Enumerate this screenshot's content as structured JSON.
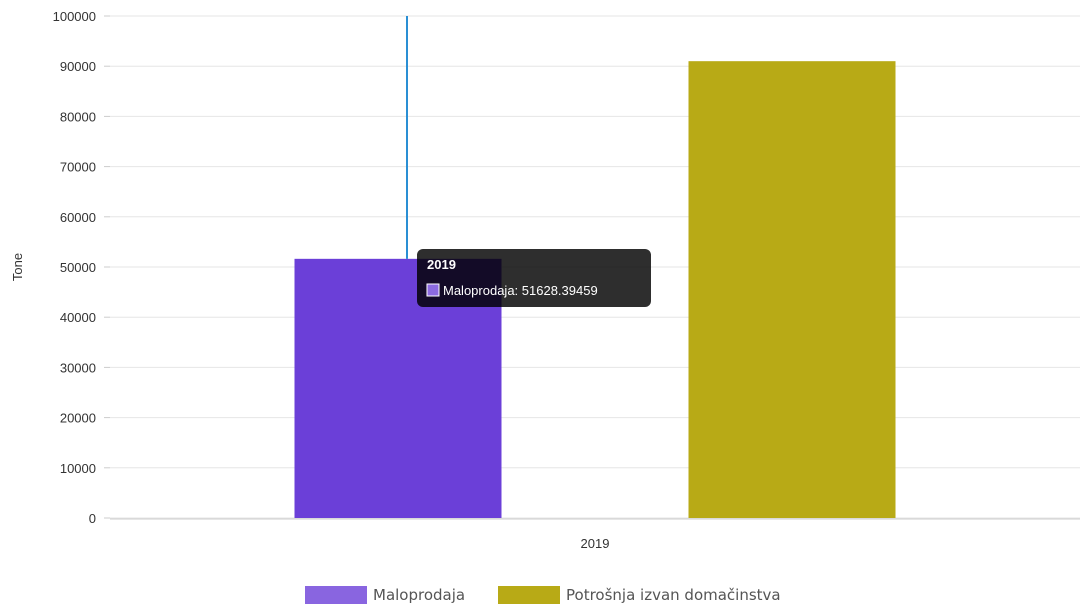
{
  "chart_data": {
    "type": "bar",
    "categories": [
      "2019"
    ],
    "series": [
      {
        "name": "Maloprodaja",
        "values": [
          51628.39459
        ],
        "color": "#6b3fd8"
      },
      {
        "name": "Potrošnja izvan domačinstva",
        "values": [
          91000
        ],
        "color": "#b8aa16"
      }
    ],
    "ylabel": "Tone",
    "xlabel": "",
    "ylim": [
      0,
      100000
    ],
    "yticks": [
      0,
      10000,
      20000,
      30000,
      40000,
      50000,
      60000,
      70000,
      80000,
      90000,
      100000
    ],
    "grid": true,
    "legend": "bottom",
    "tooltip": {
      "title": "2019",
      "text": "Maloprodaja: 51628.39459",
      "swatch_color": "#8c6be0"
    },
    "cursor_line_color": "#2a8fd4"
  }
}
